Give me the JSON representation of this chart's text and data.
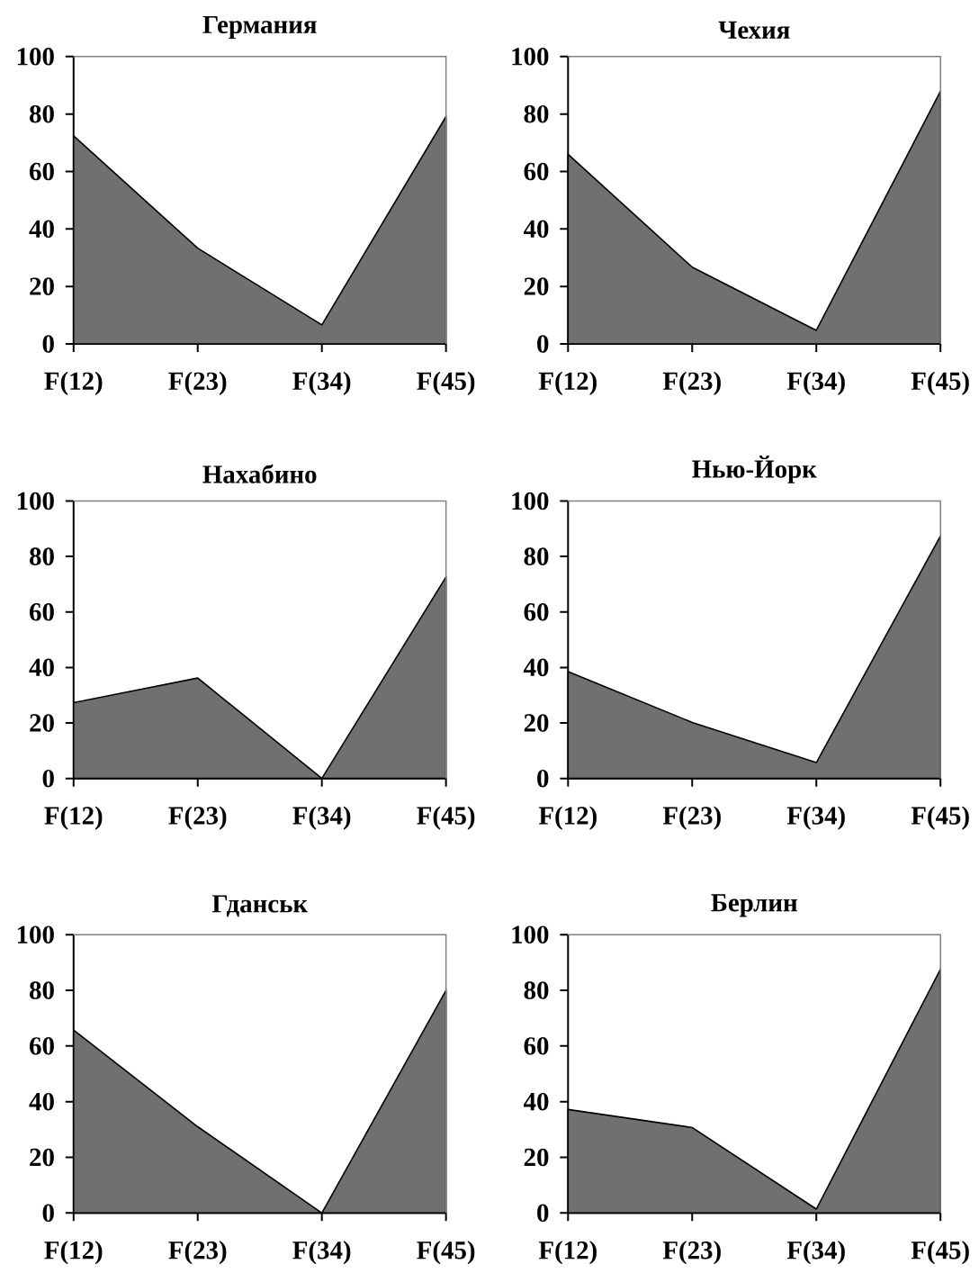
{
  "chart_data": [
    {
      "type": "area",
      "title": "Германия",
      "categories": [
        "F(12)",
        "F(23)",
        "F(34)",
        "F(45)"
      ],
      "values": [
        72.4,
        33.3,
        6.6,
        79.1
      ],
      "color": "#707070",
      "ylim": [
        0,
        100
      ],
      "yticks": [
        0,
        20,
        40,
        60,
        80,
        100
      ]
    },
    {
      "type": "area",
      "title": "Чехия",
      "categories": [
        "F(12)",
        "F(23)",
        "F(34)",
        "F(45)"
      ],
      "values": [
        66.0,
        26.7,
        4.7,
        87.9
      ],
      "color": "#707070",
      "ylim": [
        0,
        100
      ],
      "yticks": [
        0,
        20,
        40,
        60,
        80,
        100
      ]
    },
    {
      "type": "area",
      "title": "Нахабино",
      "categories": [
        "F(12)",
        "F(23)",
        "F(34)",
        "F(45)"
      ],
      "values": [
        27.3,
        36.2,
        0,
        72.6
      ],
      "color": "#707070",
      "ylim": [
        0,
        100
      ],
      "yticks": [
        0,
        20,
        40,
        60,
        80,
        100
      ]
    },
    {
      "type": "area",
      "title": "Нью-Йорк",
      "categories": [
        "F(12)",
        "F(23)",
        "F(34)",
        "F(45)"
      ],
      "values": [
        38.5,
        20.2,
        5.7,
        87.4
      ],
      "color": "#707070",
      "ylim": [
        0,
        100
      ],
      "yticks": [
        0,
        20,
        40,
        60,
        80,
        100
      ]
    },
    {
      "type": "area",
      "title": "Гданськ",
      "categories": [
        "F(12)",
        "F(23)",
        "F(34)",
        "F(45)"
      ],
      "values": [
        65.7,
        31.0,
        0,
        80.0
      ],
      "color": "#707070",
      "ylim": [
        0,
        100
      ],
      "yticks": [
        0,
        20,
        40,
        60,
        80,
        100
      ]
    },
    {
      "type": "area",
      "title": "Берлин",
      "categories": [
        "F(12)",
        "F(23)",
        "F(34)",
        "F(45)"
      ],
      "values": [
        37.2,
        30.7,
        1.4,
        87.6
      ],
      "color": "#707070",
      "ylim": [
        0,
        100
      ],
      "yticks": [
        0,
        20,
        40,
        60,
        80,
        100
      ]
    }
  ]
}
